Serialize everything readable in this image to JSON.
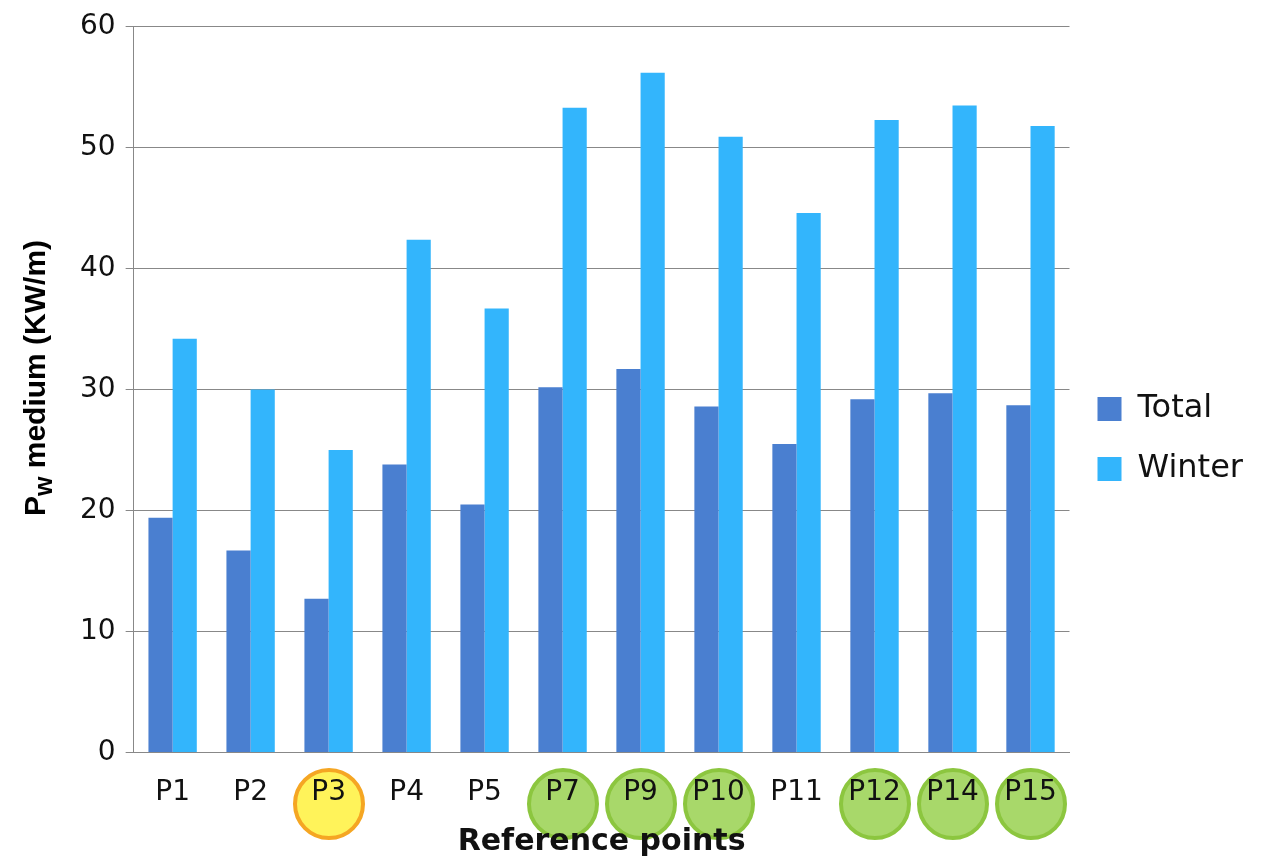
{
  "chart_data": {
    "type": "bar",
    "xlabel": "Reference points",
    "ylabel": "P$_{w}$ medium (KW/m)",
    "categories": [
      "P1",
      "P2",
      "P3",
      "P4",
      "P5",
      "P7",
      "P9",
      "P10",
      "P11",
      "P12",
      "P14",
      "P15"
    ],
    "series": [
      {
        "name": "Total",
        "color": "#4a7fd0",
        "values": [
          19.4,
          16.7,
          12.7,
          23.8,
          20.5,
          30.2,
          31.7,
          28.6,
          25.5,
          29.2,
          29.7,
          28.7
        ]
      },
      {
        "name": "Winter",
        "color": "#33b5fc",
        "values": [
          34.2,
          30.0,
          25.0,
          42.4,
          36.7,
          53.3,
          56.2,
          50.9,
          44.6,
          52.3,
          53.5,
          51.8
        ]
      }
    ],
    "ylim": [
      0,
      60
    ],
    "yticks": [
      0,
      10,
      20,
      30,
      40,
      50,
      60
    ],
    "grid": "y",
    "legend": "right"
  }
}
